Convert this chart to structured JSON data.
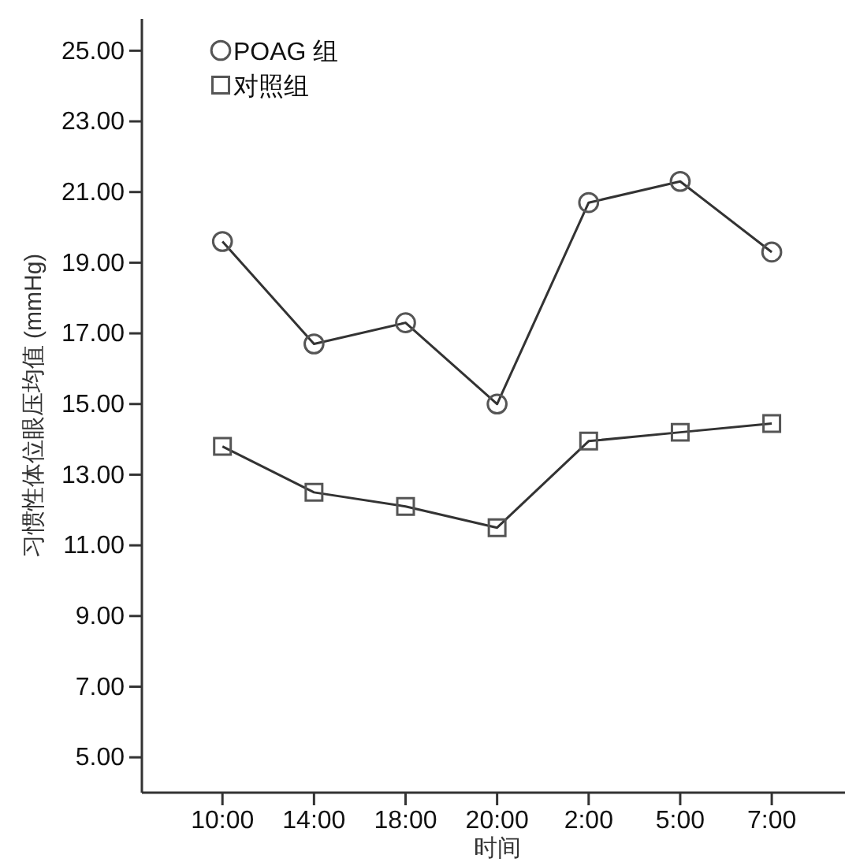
{
  "chart_data": {
    "type": "line",
    "xlabel": "时间",
    "ylabel": "习惯性体位眼压均值 (mmHg)",
    "categories": [
      "10:00",
      "14:00",
      "18:00",
      "20:00",
      "2:00",
      "5:00",
      "7:00"
    ],
    "series": [
      {
        "name": "POAG 组",
        "color": "#333333",
        "marker": "circle",
        "values": [
          19.6,
          16.7,
          17.3,
          15.0,
          20.7,
          21.3,
          19.3
        ]
      },
      {
        "name": "对照组",
        "color": "#333333",
        "marker": "square",
        "values": [
          13.8,
          12.5,
          12.1,
          11.5,
          13.95,
          14.2,
          14.45
        ]
      }
    ],
    "ylim": [
      4.0,
      25.9
    ],
    "yticks": [
      {
        "value": 5,
        "label": "5.00"
      },
      {
        "value": 7,
        "label": "7.00"
      },
      {
        "value": 9,
        "label": "9.00"
      },
      {
        "value": 11,
        "label": "11.00"
      },
      {
        "value": 13,
        "label": "13.00"
      },
      {
        "value": 15,
        "label": "15.00"
      },
      {
        "value": 17,
        "label": "17.00"
      },
      {
        "value": 19,
        "label": "19.00"
      },
      {
        "value": 21,
        "label": "21.00"
      },
      {
        "value": 23,
        "label": "23.00"
      },
      {
        "value": 25,
        "label": "25.00"
      }
    ],
    "legend": "top left",
    "grid": false,
    "line_style": "solid"
  }
}
